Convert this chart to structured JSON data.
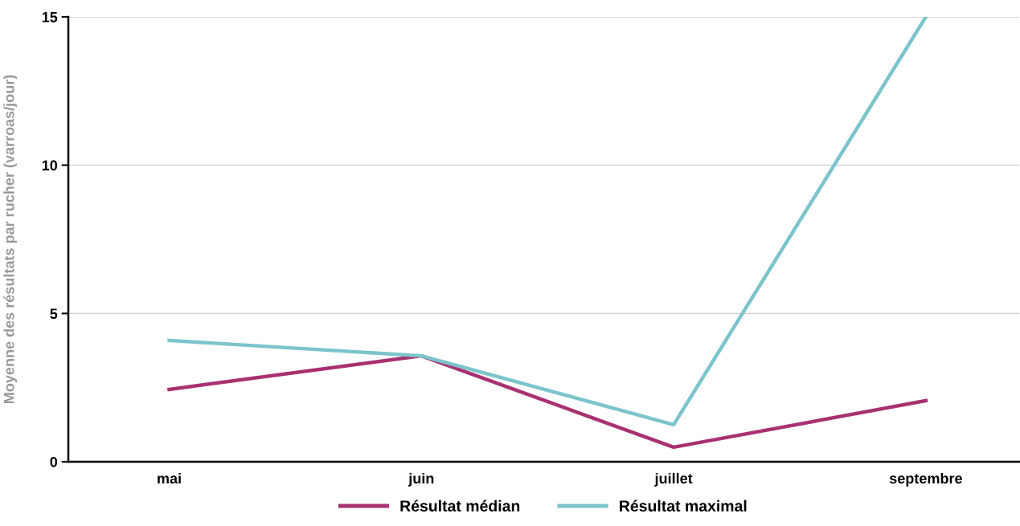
{
  "chart_data": {
    "type": "line",
    "ylabel": "Moyenne des résultats par rucher (varroas/jour)",
    "categories": [
      "mai",
      "juin",
      "juillet",
      "septembre"
    ],
    "series": [
      {
        "name": "Résultat médian",
        "color": "#a83271",
        "values": [
          2.44,
          3.57,
          0.49,
          2.06
        ]
      },
      {
        "name": "Résultat maximal",
        "color": "#7cc4cc",
        "values": [
          4.09,
          3.57,
          1.25,
          15.0
        ]
      }
    ],
    "ylim": [
      0,
      15
    ],
    "yticks": [
      0,
      5,
      10,
      15
    ],
    "grid": "y",
    "legend": "bottom",
    "marker": "none",
    "line_style": "solid"
  }
}
